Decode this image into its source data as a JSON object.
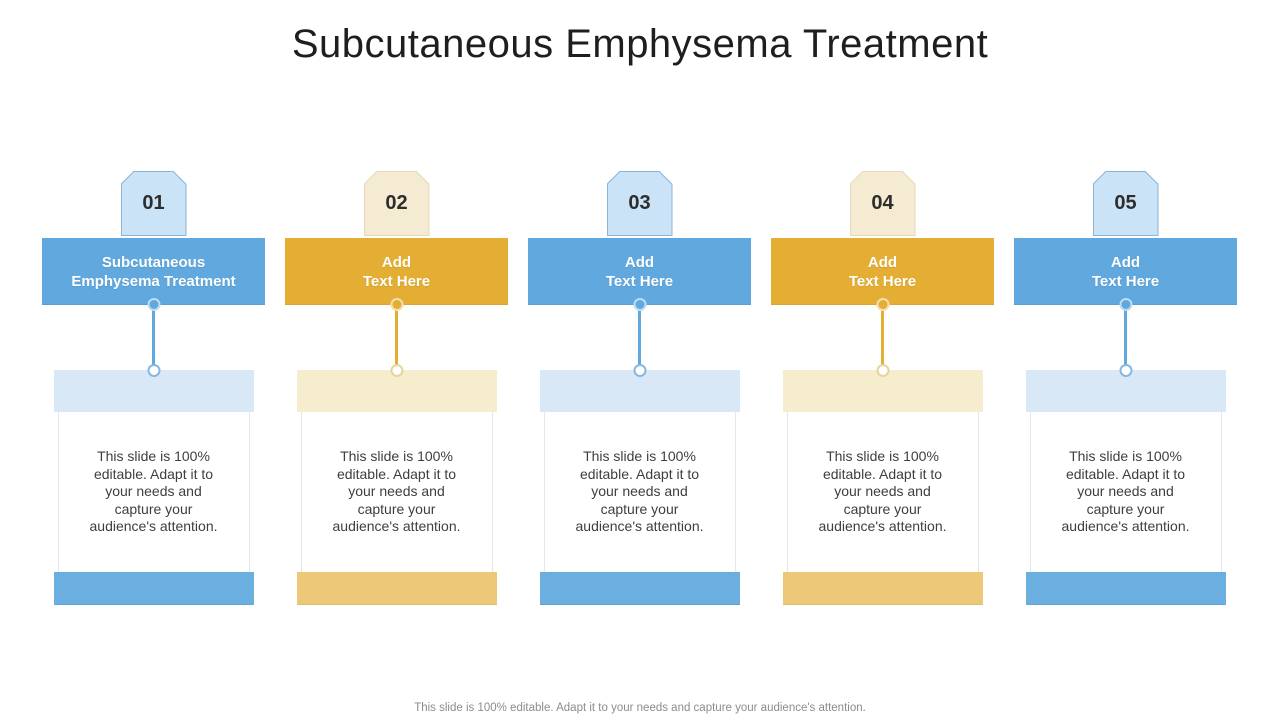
{
  "slide": {
    "title": "Subcutaneous Emphysema Treatment",
    "footer": "This slide is 100% editable. Adapt it to your needs and capture your audience's attention."
  },
  "colors": {
    "blue": "#60A8DD",
    "blue_bottom": "#6BAEE0",
    "blue_light": "#D9E8F7",
    "blue_badge": "#CBE3F6",
    "blue_badge_border": "#8AB4D8",
    "blue_ring": "#85B8E2",
    "gold": "#E3AE33",
    "gold_bottom": "#ECC878",
    "gold_light": "#F6ECCE",
    "gold_badge": "#F5EBD3",
    "gold_badge_border": "#E6D9BA",
    "gold_ring": "#E8D2A0"
  },
  "columns": [
    {
      "number": "01",
      "theme": "blue",
      "header": "Subcutaneous\nEmphysema Treatment",
      "body": "This slide is 100%\neditable. Adapt it to\nyour needs and\ncapture your\naudience's attention."
    },
    {
      "number": "02",
      "theme": "gold",
      "header": "Add\nText Here",
      "body": "This slide is 100%\neditable. Adapt it to\nyour needs and\ncapture your\naudience's attention."
    },
    {
      "number": "03",
      "theme": "blue",
      "header": "Add\nText Here",
      "body": "This slide is 100%\neditable. Adapt it to\nyour needs and\ncapture your\naudience's attention."
    },
    {
      "number": "04",
      "theme": "gold",
      "header": "Add\nText Here",
      "body": "This slide is 100%\neditable. Adapt it to\nyour needs and\ncapture your\naudience's attention."
    },
    {
      "number": "05",
      "theme": "blue",
      "header": "Add\nText Here",
      "body": "This slide is 100%\neditable. Adapt it to\nyour needs and\ncapture your\naudience's attention."
    }
  ]
}
